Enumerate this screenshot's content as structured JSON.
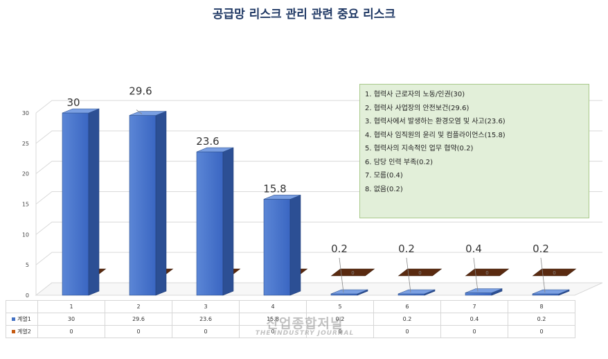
{
  "chart_data": {
    "type": "bar",
    "title": "공급망 리스크 관리 관련 중요 리스크",
    "categories": [
      "1",
      "2",
      "3",
      "4",
      "5",
      "6",
      "7",
      "8"
    ],
    "series": [
      {
        "name": "계열1",
        "values": [
          30,
          29.6,
          23.6,
          15.8,
          0.2,
          0.2,
          0.4,
          0.2
        ],
        "color": "#4472c4"
      },
      {
        "name": "계열2",
        "values": [
          0,
          0,
          0,
          0,
          0,
          0,
          0,
          0
        ],
        "color": "#c55a11"
      }
    ],
    "data_labels": [
      "30",
      "29.6",
      "23.6",
      "15.8",
      "0.2",
      "0.2",
      "0.4",
      "0.2"
    ],
    "ylim": [
      0,
      30
    ],
    "yticks": [
      "0",
      "5",
      "10",
      "15",
      "20",
      "25",
      "30"
    ],
    "grid": true,
    "view": "3d-column"
  },
  "legend_box": {
    "background": "#e2efd9",
    "items": [
      "1. 협력사 근로자의 노동/인권(30)",
      "2. 협력사 사업장의 안전보건(29.6)",
      "3. 협력사에서 발생하는 환경오염 및 사고(23.6)",
      "4. 협력사 임직원의 윤리 및 컴플라이언스(15.8)",
      "5. 협력사의 지속적인 업무 협약(0.2)",
      "6. 담당 인력 부족(0.2)",
      "7. 모름(0.4)",
      "8. 없음(0.2)"
    ]
  },
  "data_table": {
    "rows": [
      {
        "label": "계열1",
        "values": [
          "30",
          "29.6",
          "23.6",
          "15.8",
          "0.2",
          "0.2",
          "0.4",
          "0.2"
        ]
      },
      {
        "label": "계열2",
        "values": [
          "0",
          "0",
          "0",
          "0",
          "0",
          "0",
          "0",
          "0"
        ]
      }
    ]
  },
  "watermark": {
    "line1": "산업종합저널",
    "line2": "THE INDUSTRY JOURNAL"
  }
}
